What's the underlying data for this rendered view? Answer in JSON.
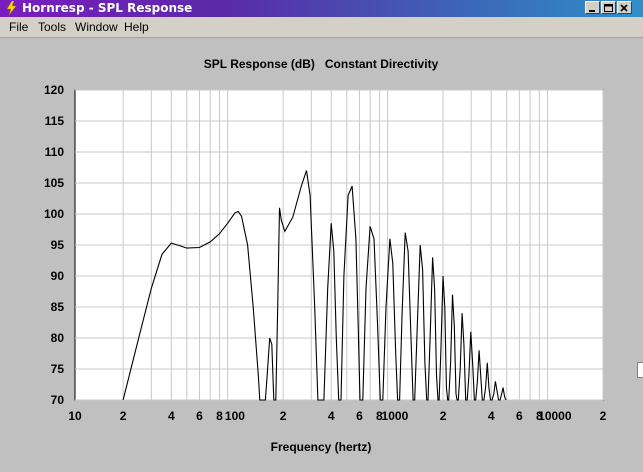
{
  "window": {
    "title": "Hornresp - SPL Response"
  },
  "menu": {
    "items": [
      "File",
      "Tools",
      "Window",
      "Help"
    ]
  },
  "chart_data": {
    "type": "line",
    "title": "SPL Response (dB)   Constant Directivity",
    "xlabel": "Frequency (hertz)",
    "ylabel": "",
    "xscale": "log",
    "xlim": [
      10,
      20000
    ],
    "ylim": [
      70,
      120
    ],
    "grid": true,
    "y_ticks": [
      120,
      115,
      110,
      105,
      100,
      95,
      90,
      85,
      80,
      75,
      70
    ],
    "x_ticks": [
      {
        "v": 10,
        "label": "10"
      },
      {
        "v": 20,
        "label": "2"
      },
      {
        "v": 40,
        "label": "4"
      },
      {
        "v": 60,
        "label": "6"
      },
      {
        "v": 80,
        "label": "8"
      },
      {
        "v": 100,
        "label": "100"
      },
      {
        "v": 200,
        "label": "2"
      },
      {
        "v": 400,
        "label": "4"
      },
      {
        "v": 600,
        "label": "6"
      },
      {
        "v": 800,
        "label": "8"
      },
      {
        "v": 1000,
        "label": "1000"
      },
      {
        "v": 2000,
        "label": "2"
      },
      {
        "v": 4000,
        "label": "4"
      },
      {
        "v": 6000,
        "label": "6"
      },
      {
        "v": 8000,
        "label": "8"
      },
      {
        "v": 10000,
        "label": "10000"
      },
      {
        "v": 20000,
        "label": "2"
      }
    ],
    "series": [
      {
        "values": [
          [
            20,
            70
          ],
          [
            25,
            80
          ],
          [
            30,
            88
          ],
          [
            35,
            93.5
          ],
          [
            40,
            95.3
          ],
          [
            45,
            94.9
          ],
          [
            50,
            94.5
          ],
          [
            60,
            94.6
          ],
          [
            70,
            95.5
          ],
          [
            80,
            96.8
          ],
          [
            90,
            98.5
          ],
          [
            100,
            100.2
          ],
          [
            105,
            100.4
          ],
          [
            110,
            99.6
          ],
          [
            120,
            95
          ],
          [
            130,
            85
          ],
          [
            140,
            74
          ],
          [
            143,
            70
          ],
          [
            155,
            70
          ],
          [
            160,
            75
          ],
          [
            165,
            80
          ],
          [
            170,
            79
          ],
          [
            175,
            70
          ],
          [
            180,
            70
          ],
          [
            185,
            85
          ],
          [
            190,
            101
          ],
          [
            195,
            99
          ],
          [
            205,
            97.2
          ],
          [
            230,
            99.5
          ],
          [
            260,
            104.5
          ],
          [
            280,
            107
          ],
          [
            295,
            103
          ],
          [
            315,
            85
          ],
          [
            330,
            70
          ],
          [
            360,
            70
          ],
          [
            380,
            88
          ],
          [
            400,
            98.5
          ],
          [
            415,
            94
          ],
          [
            430,
            80
          ],
          [
            445,
            70
          ],
          [
            460,
            70
          ],
          [
            480,
            90
          ],
          [
            510,
            103
          ],
          [
            540,
            104.5
          ],
          [
            570,
            96
          ],
          [
            590,
            82
          ],
          [
            605,
            70
          ],
          [
            630,
            70
          ],
          [
            660,
            88
          ],
          [
            700,
            98
          ],
          [
            740,
            96
          ],
          [
            780,
            82
          ],
          [
            810,
            70
          ],
          [
            840,
            70
          ],
          [
            880,
            85
          ],
          [
            930,
            96
          ],
          [
            970,
            92
          ],
          [
            1010,
            78
          ],
          [
            1040,
            70
          ],
          [
            1070,
            70
          ],
          [
            1110,
            84
          ],
          [
            1160,
            97
          ],
          [
            1210,
            94
          ],
          [
            1260,
            80
          ],
          [
            1300,
            70
          ],
          [
            1330,
            70
          ],
          [
            1380,
            82
          ],
          [
            1440,
            95
          ],
          [
            1490,
            91
          ],
          [
            1540,
            76
          ],
          [
            1580,
            70
          ],
          [
            1610,
            70
          ],
          [
            1660,
            80
          ],
          [
            1720,
            93
          ],
          [
            1770,
            88
          ],
          [
            1820,
            74
          ],
          [
            1860,
            70
          ],
          [
            1890,
            70
          ],
          [
            1940,
            78
          ],
          [
            2000,
            90
          ],
          [
            2050,
            85
          ],
          [
            2100,
            72
          ],
          [
            2140,
            70
          ],
          [
            2170,
            70
          ],
          [
            2230,
            76
          ],
          [
            2290,
            87
          ],
          [
            2350,
            82
          ],
          [
            2410,
            71
          ],
          [
            2450,
            70
          ],
          [
            2490,
            70
          ],
          [
            2560,
            75
          ],
          [
            2630,
            84
          ],
          [
            2700,
            79
          ],
          [
            2770,
            70
          ],
          [
            2830,
            70
          ],
          [
            2900,
            74
          ],
          [
            2980,
            81
          ],
          [
            3060,
            76
          ],
          [
            3140,
            70
          ],
          [
            3200,
            70
          ],
          [
            3280,
            73
          ],
          [
            3360,
            78
          ],
          [
            3440,
            74
          ],
          [
            3520,
            70
          ],
          [
            3600,
            70
          ],
          [
            3690,
            72
          ],
          [
            3780,
            76
          ],
          [
            3870,
            72
          ],
          [
            3960,
            70
          ],
          [
            4050,
            70
          ],
          [
            4150,
            71
          ],
          [
            4250,
            73
          ],
          [
            4350,
            71.5
          ],
          [
            4450,
            70
          ],
          [
            4550,
            70
          ],
          [
            4650,
            71
          ],
          [
            4750,
            72
          ],
          [
            4850,
            70.5
          ],
          [
            4950,
            70
          ]
        ]
      }
    ]
  }
}
